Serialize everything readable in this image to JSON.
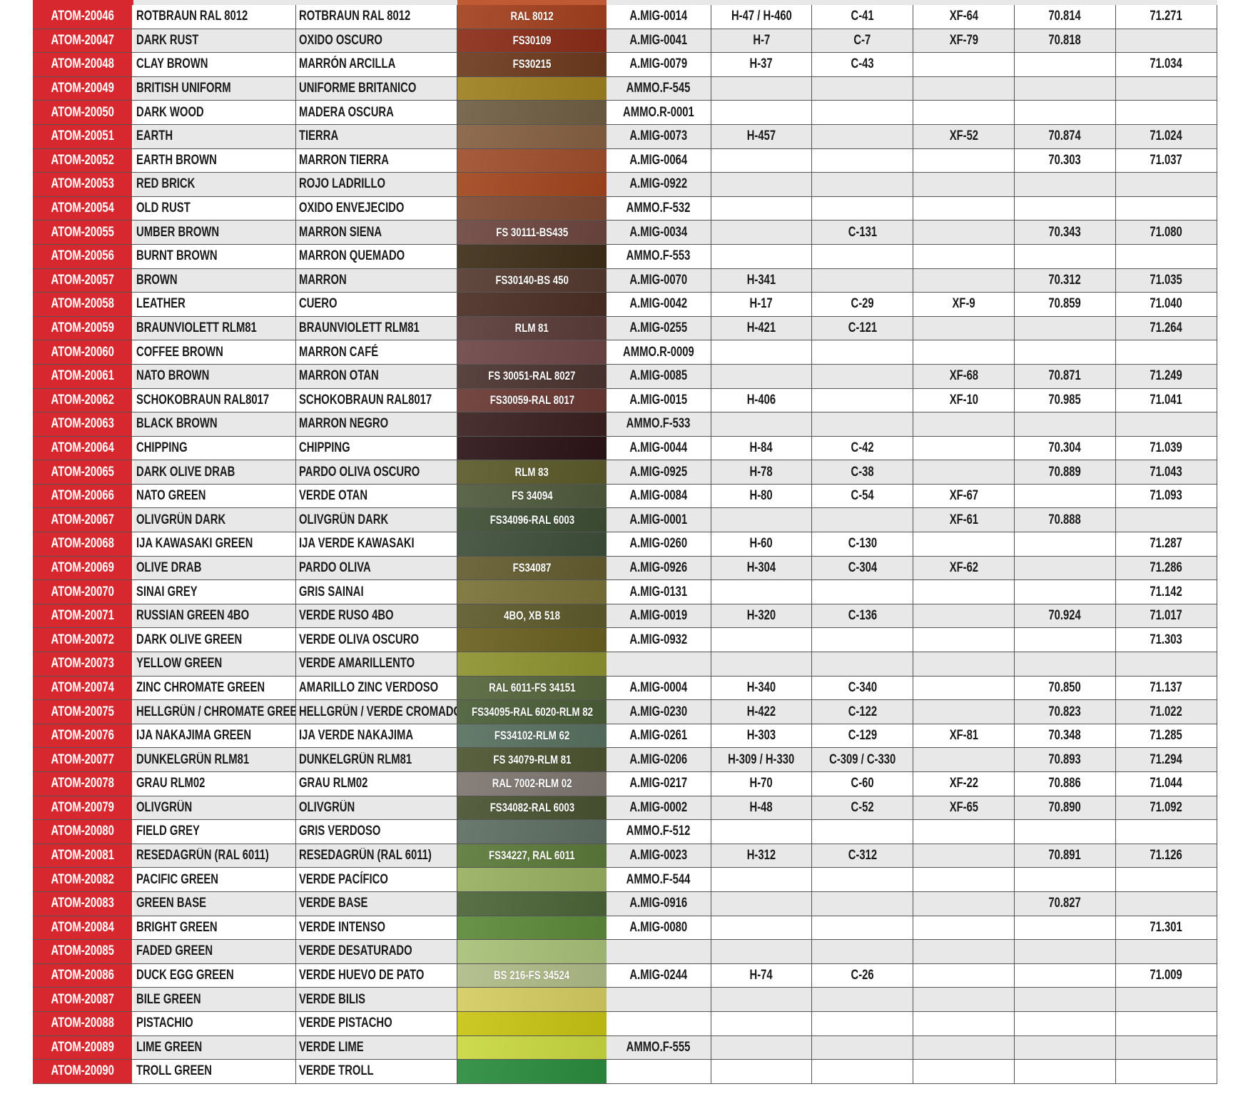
{
  "accent_color": "#d7282f",
  "top_partial_swatch_color": "#c05a34",
  "rows": [
    {
      "id": "ATOM-20046",
      "en": "ROTBRAUN RAL 8012",
      "es": "ROTBRAUN RAL 8012",
      "color": "#a3401f",
      "code": "RAL 8012",
      "amig": "A.MIG-0014",
      "h": "H-47 / H-460",
      "c": "C-41",
      "xf": "XF-64",
      "v70": "70.814",
      "v71": "71.271"
    },
    {
      "id": "ATOM-20047",
      "en": "DARK RUST",
      "es": "OXIDO OSCURO",
      "color": "#8a2c18",
      "code": "FS30109",
      "amig": "A.MIG-0041",
      "h": "H-7",
      "c": "C-7",
      "xf": "XF-79",
      "v70": "70.818",
      "v71": ""
    },
    {
      "id": "ATOM-20048",
      "en": "CLAY BROWN",
      "es": "MARRÓN ARCILLA",
      "color": "#6e3a1e",
      "code": "FS30215",
      "amig": "A.MIG-0079",
      "h": "H-37",
      "c": "C-43",
      "xf": "",
      "v70": "",
      "v71": "71.034"
    },
    {
      "id": "ATOM-20049",
      "en": "BRITISH UNIFORM",
      "es": "UNIFORME BRITANICO",
      "color": "#9e8020",
      "code": "",
      "amig": "AMMO.F-545",
      "h": "",
      "c": "",
      "xf": "",
      "v70": "",
      "v71": ""
    },
    {
      "id": "ATOM-20050",
      "en": "DARK WOOD",
      "es": "MADERA OSCURA",
      "color": "#6f5e44",
      "code": "",
      "amig": "AMMO.R-0001",
      "h": "",
      "c": "",
      "xf": "",
      "v70": "",
      "v71": ""
    },
    {
      "id": "ATOM-20051",
      "en": "EARTH",
      "es": "TIERRA",
      "color": "#866041",
      "code": "",
      "amig": "A.MIG-0073",
      "h": "H-457",
      "c": "",
      "xf": "XF-52",
      "v70": "70.874",
      "v71": "71.024"
    },
    {
      "id": "ATOM-20052",
      "en": "EARTH BROWN",
      "es": "MARRON TIERRA",
      "color": "#a04e2c",
      "code": "",
      "amig": "A.MIG-0064",
      "h": "",
      "c": "",
      "xf": "",
      "v70": "70.303",
      "v71": "71.037"
    },
    {
      "id": "ATOM-20053",
      "en": "RED BRICK",
      "es": "ROJO LADRILLO",
      "color": "#a2461e",
      "code": "",
      "amig": "A.MIG-0922",
      "h": "",
      "c": "",
      "xf": "",
      "v70": "",
      "v71": ""
    },
    {
      "id": "ATOM-20054",
      "en": "OLD RUST",
      "es": "OXIDO ENVEJECIDO",
      "color": "#7e4a32",
      "code": "",
      "amig": "AMMO.F-532",
      "h": "",
      "c": "",
      "xf": "",
      "v70": "",
      "v71": ""
    },
    {
      "id": "ATOM-20055",
      "en": "UMBER BROWN",
      "es": "MARRON SIENA",
      "color": "#6e4640",
      "code": "FS 30111-BS435",
      "amig": "A.MIG-0034",
      "h": "",
      "c": "C-131",
      "xf": "",
      "v70": "70.343",
      "v71": "71.080"
    },
    {
      "id": "ATOM-20056",
      "en": "BURNT BROWN",
      "es": "MARRON QUEMADO",
      "color": "#3e2e18",
      "code": "",
      "amig": "AMMO.F-553",
      "h": "",
      "c": "",
      "xf": "",
      "v70": "",
      "v71": ""
    },
    {
      "id": "ATOM-20057",
      "en": "BROWN",
      "es": "MARRON",
      "color": "#553a30",
      "code": "FS30140-BS 450",
      "amig": "A.MIG-0070",
      "h": "H-341",
      "c": "",
      "xf": "",
      "v70": "70.312",
      "v71": "71.035"
    },
    {
      "id": "ATOM-20058",
      "en": "LEATHER",
      "es": "CUERO",
      "color": "#4a2e24",
      "code": "",
      "amig": "A.MIG-0042",
      "h": "H-17",
      "c": "C-29",
      "xf": "XF-9",
      "v70": "70.859",
      "v71": "71.040"
    },
    {
      "id": "ATOM-20059",
      "en": "BRAUNVIOLETT RLM81",
      "es": "BRAUNVIOLETT RLM81",
      "color": "#5a3c3a",
      "code": "RLM 81",
      "amig": "A.MIG-0255",
      "h": "H-421",
      "c": "C-121",
      "xf": "",
      "v70": "",
      "v71": "71.264"
    },
    {
      "id": "ATOM-20060",
      "en": "COFFEE BROWN",
      "es": "MARRON CAFÉ",
      "color": "#6e4646",
      "code": "",
      "amig": "AMMO.R-0009",
      "h": "",
      "c": "",
      "xf": "",
      "v70": "",
      "v71": ""
    },
    {
      "id": "ATOM-20061",
      "en": "NATO BROWN",
      "es": "MARRON OTAN",
      "color": "#4c3430",
      "code": "FS 30051-RAL 8027",
      "amig": "A.MIG-0085",
      "h": "",
      "c": "",
      "xf": "XF-68",
      "v70": "70.871",
      "v71": "71.249"
    },
    {
      "id": "ATOM-20062",
      "en": "SCHOKOBRAUN RAL8017",
      "es": "SCHOKOBRAUN RAL8017",
      "color": "#6a3834",
      "code": "FS30059-RAL 8017",
      "amig": "A.MIG-0015",
      "h": "H-406",
      "c": "",
      "xf": "XF-10",
      "v70": "70.985",
      "v71": "71.041"
    },
    {
      "id": "ATOM-20063",
      "en": "BLACK BROWN",
      "es": "MARRON NEGRO",
      "color": "#3a2020",
      "code": "",
      "amig": "AMMO.F-533",
      "h": "",
      "c": "",
      "xf": "",
      "v70": "",
      "v71": ""
    },
    {
      "id": "ATOM-20064",
      "en": "CHIPPING",
      "es": "CHIPPING",
      "color": "#2c1418",
      "code": "",
      "amig": "A.MIG-0044",
      "h": "H-84",
      "c": "C-42",
      "xf": "",
      "v70": "70.304",
      "v71": "71.039"
    },
    {
      "id": "ATOM-20065",
      "en": "DARK OLIVE DRAB",
      "es": "PARDO OLIVA OSCURO",
      "color": "#5a5a2a",
      "code": "RLM 83",
      "amig": "A.MIG-0925",
      "h": "H-78",
      "c": "C-38",
      "xf": "",
      "v70": "70.889",
      "v71": "71.043"
    },
    {
      "id": "ATOM-20066",
      "en": "NATO GREEN",
      "es": "VERDE OTAN",
      "color": "#4e5a3c",
      "code": "FS 34094",
      "amig": "A.MIG-0084",
      "h": "H-80",
      "c": "C-54",
      "xf": "XF-67",
      "v70": "",
      "v71": "71.093"
    },
    {
      "id": "ATOM-20067",
      "en": "OLIVGRÜN DARK",
      "es": "OLIVGRÜN DARK",
      "color": "#3e4e34",
      "code": "FS34096-RAL 6003",
      "amig": "A.MIG-0001",
      "h": "",
      "c": "",
      "xf": "XF-61",
      "v70": "70.888",
      "v71": ""
    },
    {
      "id": "ATOM-20068",
      "en": "IJA KAWASAKI GREEN",
      "es": "IJA VERDE KAWASAKI",
      "color": "#3e4e3a",
      "code": "",
      "amig": "A.MIG-0260",
      "h": "H-60",
      "c": "C-130",
      "xf": "",
      "v70": "",
      "v71": "71.287"
    },
    {
      "id": "ATOM-20069",
      "en": "OLIVE DRAB",
      "es": "PARDO OLIVA",
      "color": "#645c30",
      "code": "FS34087",
      "amig": "A.MIG-0926",
      "h": "H-304",
      "c": "C-304",
      "xf": "XF-62",
      "v70": "",
      "v71": "71.286"
    },
    {
      "id": "ATOM-20070",
      "en": "SINAI GREY",
      "es": "GRIS SAINAI",
      "color": "#7a7238",
      "code": "",
      "amig": "A.MIG-0131",
      "h": "",
      "c": "",
      "xf": "",
      "v70": "",
      "v71": "71.142"
    },
    {
      "id": "ATOM-20071",
      "en": "RUSSIAN GREEN 4BO",
      "es": "VERDE RUSO 4BO",
      "color": "#5e5a2c",
      "code": "4BO, XB 518",
      "amig": "A.MIG-0019",
      "h": "H-320",
      "c": "C-136",
      "xf": "",
      "v70": "70.924",
      "v71": "71.017"
    },
    {
      "id": "ATOM-20072",
      "en": "DARK OLIVE GREEN",
      "es": "VERDE OLIVA OSCURO",
      "color": "#6a6020",
      "code": "",
      "amig": "A.MIG-0932",
      "h": "",
      "c": "",
      "xf": "",
      "v70": "",
      "v71": "71.303"
    },
    {
      "id": "ATOM-20073",
      "en": "YELLOW GREEN",
      "es": "VERDE AMARILLENTO",
      "color": "#8e9230",
      "code": "",
      "amig": "",
      "h": "",
      "c": "",
      "xf": "",
      "v70": "",
      "v71": ""
    },
    {
      "id": "ATOM-20074",
      "en": "ZINC CHROMATE GREEN",
      "es": "AMARILLO ZINC VERDOSO",
      "color": "#56663c",
      "code": "RAL 6011-FS 34151",
      "amig": "A.MIG-0004",
      "h": "H-340",
      "c": "C-340",
      "xf": "",
      "v70": "70.850",
      "v71": "71.137"
    },
    {
      "id": "ATOM-20075",
      "en": "HELLGRÜN / CHROMATE GREEN",
      "es": "HELLGRÜN / VERDE CROMADO",
      "color": "#4a5e38",
      "code": "FS34095-RAL 6020-RLM 82",
      "amig": "A.MIG-0230",
      "h": "H-422",
      "c": "C-122",
      "xf": "",
      "v70": "70.823",
      "v71": "71.022"
    },
    {
      "id": "ATOM-20076",
      "en": "IJA NAKAJIMA GREEN",
      "es": "IJA VERDE NAKAJIMA",
      "color": "#587060",
      "code": "FS34102-RLM 62",
      "amig": "A.MIG-0261",
      "h": "H-303",
      "c": "C-129",
      "xf": "XF-81",
      "v70": "70.348",
      "v71": "71.285"
    },
    {
      "id": "ATOM-20077",
      "en": "DUNKELGRÜN RLM81",
      "es": "DUNKELGRÜN RLM81",
      "color": "#4c5430",
      "code": "FS 34079-RLM 81",
      "amig": "A.MIG-0206",
      "h": "H-309 / H-330",
      "c": "C-309 / C-330",
      "xf": "",
      "v70": "70.893",
      "v71": "71.294"
    },
    {
      "id": "ATOM-20078",
      "en": "GRAU RLM02",
      "es": "GRAU RLM02",
      "color": "#7e7670",
      "code": "RAL 7002-RLM 02",
      "amig": "A.MIG-0217",
      "h": "H-70",
      "c": "C-60",
      "xf": "XF-22",
      "v70": "70.886",
      "v71": "71.044"
    },
    {
      "id": "ATOM-20079",
      "en": "OLIVGRÜN",
      "es": "OLIVGRÜN",
      "color": "#4a5232",
      "code": "FS34082-RAL 6003",
      "amig": "A.MIG-0002",
      "h": "H-48",
      "c": "C-52",
      "xf": "XF-65",
      "v70": "70.890",
      "v71": "71.092"
    },
    {
      "id": "ATOM-20080",
      "en": "FIELD GREY",
      "es": "GRIS VERDOSO",
      "color": "#5e6e62",
      "code": "",
      "amig": "AMMO.F-512",
      "h": "",
      "c": "",
      "xf": "",
      "v70": "",
      "v71": ""
    },
    {
      "id": "ATOM-20081",
      "en": "RESEDAGRÜN (RAL 6011)",
      "es": "RESEDAGRÜN (RAL 6011)",
      "color": "#5c7a38",
      "code": "FS34227, RAL 6011",
      "amig": "A.MIG-0023",
      "h": "H-312",
      "c": "C-312",
      "xf": "",
      "v70": "70.891",
      "v71": "71.126"
    },
    {
      "id": "ATOM-20082",
      "en": "PACIFIC GREEN",
      "es": "VERDE PACÍFICO",
      "color": "#98b060",
      "code": "",
      "amig": "AMMO.F-544",
      "h": "",
      "c": "",
      "xf": "",
      "v70": "",
      "v71": ""
    },
    {
      "id": "ATOM-20083",
      "en": "GREEN BASE",
      "es": "VERDE BASE",
      "color": "#4c6438",
      "code": "",
      "amig": "A.MIG-0916",
      "h": "",
      "c": "",
      "xf": "",
      "v70": "70.827",
      "v71": ""
    },
    {
      "id": "ATOM-20084",
      "en": "BRIGHT GREEN",
      "es": "VERDE INTENSO",
      "color": "#5c8a3a",
      "code": "",
      "amig": "A.MIG-0080",
      "h": "",
      "c": "",
      "xf": "",
      "v70": "",
      "v71": "71.301"
    },
    {
      "id": "ATOM-20085",
      "en": "FADED GREEN",
      "es": "VERDE DESATURADO",
      "color": "#a8c078",
      "code": "",
      "amig": "",
      "h": "",
      "c": "",
      "xf": "",
      "v70": "",
      "v71": ""
    },
    {
      "id": "ATOM-20086",
      "en": "DUCK EGG GREEN",
      "es": "VERDE HUEVO DE PATO",
      "color": "#b0bc88",
      "code": "BS 216-FS 34524",
      "amig": "A.MIG-0244",
      "h": "H-74",
      "c": "C-26",
      "xf": "",
      "v70": "",
      "v71": "71.009"
    },
    {
      "id": "ATOM-20087",
      "en": "BILE GREEN",
      "es": "VERDE BILIS",
      "color": "#d4cc60",
      "code": "",
      "amig": "",
      "h": "",
      "c": "",
      "xf": "",
      "v70": "",
      "v71": ""
    },
    {
      "id": "ATOM-20088",
      "en": "PISTACHIO",
      "es": "VERDE PISTACHO",
      "color": "#c8c414",
      "code": "",
      "amig": "",
      "h": "",
      "c": "",
      "xf": "",
      "v70": "",
      "v71": ""
    },
    {
      "id": "ATOM-20089",
      "en": "LIME GREEN",
      "es": "VERDE LIME",
      "color": "#cad840",
      "code": "",
      "amig": "AMMO.F-555",
      "h": "",
      "c": "",
      "xf": "",
      "v70": "",
      "v71": ""
    },
    {
      "id": "ATOM-20090",
      "en": "TROLL GREEN",
      "es": "VERDE TROLL",
      "color": "#2a8c3e",
      "code": "",
      "amig": "",
      "h": "",
      "c": "",
      "xf": "",
      "v70": "",
      "v71": ""
    }
  ]
}
